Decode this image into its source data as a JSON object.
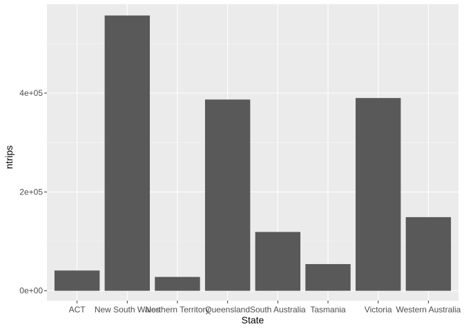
{
  "chart_data": {
    "type": "bar",
    "title": "",
    "xlabel": "State",
    "ylabel": "ntrips",
    "categories": [
      "ACT",
      "New South Wales",
      "Northern Territory",
      "Queensland",
      "South Australia",
      "Tasmania",
      "Victoria",
      "Western Australia"
    ],
    "values": [
      41000,
      557000,
      28000,
      387000,
      119000,
      54000,
      390000,
      149000
    ],
    "ylim": [
      -20000,
      580000
    ],
    "y_ticks": [
      0,
      200000,
      400000
    ],
    "y_tick_labels": [
      "0e+00",
      "2e+05",
      "4e+05"
    ],
    "grid": true,
    "legend": "none",
    "colors": {
      "panel": "#ebebeb",
      "bar": "#595959",
      "grid_major": "#ffffff",
      "grid_minor": "#f5f5f5",
      "tick_label": "#4d4d4d",
      "axis_title": "#000000"
    }
  }
}
